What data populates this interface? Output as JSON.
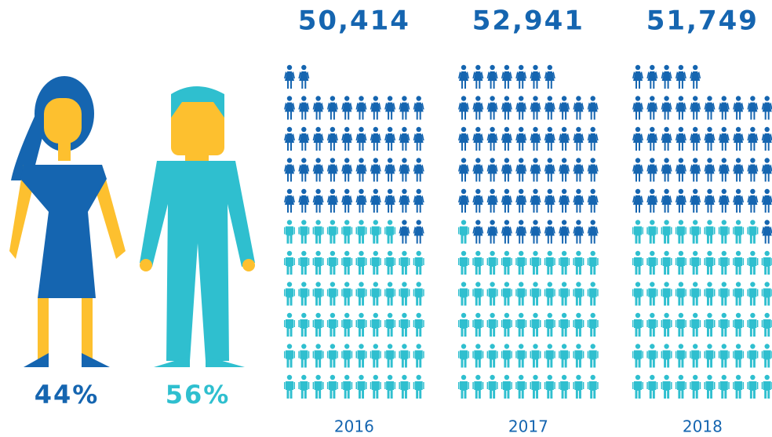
{
  "chart_data": {
    "type": "pictogram",
    "categories": [
      "2016",
      "2017",
      "2018"
    ],
    "totals": [
      50414,
      52941,
      51749
    ],
    "total_labels": [
      "50,414",
      "52,941",
      "51,749"
    ],
    "series": [
      {
        "color": "#1565b0",
        "values": [
          44,
          56,
          46
        ],
        "share": 44,
        "share_label": "44%"
      },
      {
        "color": "#2fbfcf",
        "values": [
          58,
          51,
          59
        ],
        "share": 56,
        "share_label": "56%"
      }
    ]
  }
}
